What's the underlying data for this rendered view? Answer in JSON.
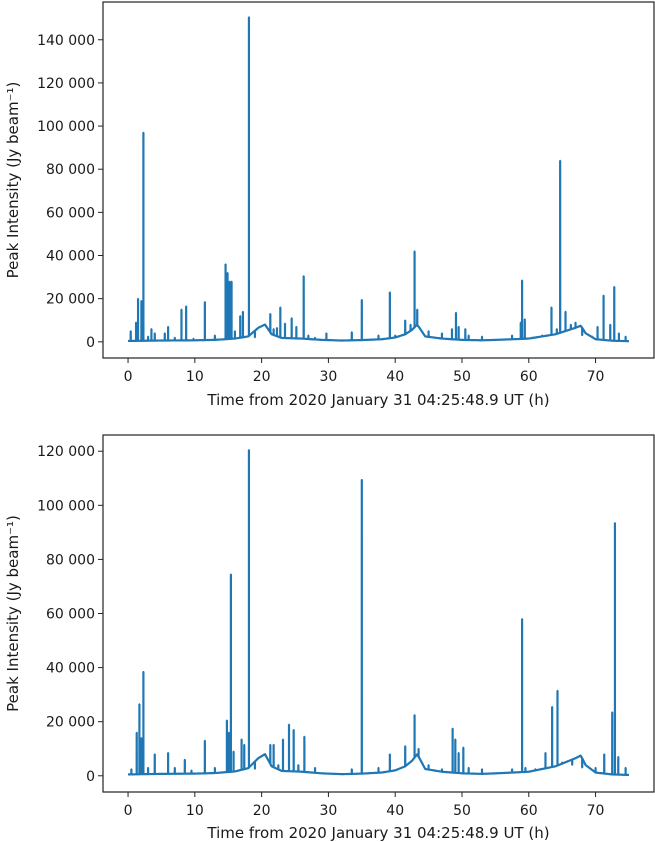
{
  "chart_data": [
    {
      "type": "line",
      "title": "",
      "xlabel": "Time from 2020 January 31 04:25:48.9 UT (h)",
      "ylabel": "Peak Intensity (Jy beam⁻¹)",
      "xlim": [
        -3.75,
        78.75
      ],
      "ylim": [
        -7500,
        157500
      ],
      "xticks": [
        0,
        10,
        20,
        30,
        40,
        50,
        60,
        70
      ],
      "yticks": [
        0,
        20000,
        40000,
        60000,
        80000,
        100000,
        120000,
        140000
      ],
      "ytick_labels": [
        "0",
        "20 000",
        "40 000",
        "60 000",
        "80 000",
        "100 000",
        "120 000",
        "140 000"
      ],
      "grid": false,
      "series": [
        {
          "color": "#1f77b4",
          "baseline": [
            [
              0,
              400
            ],
            [
              5,
              600
            ],
            [
              10,
              700
            ],
            [
              13,
              900
            ],
            [
              16,
              1500
            ],
            [
              18,
              2500
            ],
            [
              19.5,
              6500
            ],
            [
              20.5,
              8000
            ],
            [
              21.5,
              3500
            ],
            [
              23,
              1800
            ],
            [
              26,
              1500
            ],
            [
              29,
              900
            ],
            [
              32,
              600
            ],
            [
              35,
              800
            ],
            [
              38,
              1200
            ],
            [
              40,
              2000
            ],
            [
              41.5,
              3500
            ],
            [
              42.5,
              5500
            ],
            [
              43.3,
              8000
            ],
            [
              44.5,
              2500
            ],
            [
              47,
              1500
            ],
            [
              50,
              900
            ],
            [
              53,
              700
            ],
            [
              56,
              1000
            ],
            [
              60,
              1500
            ],
            [
              62,
              2500
            ],
            [
              64,
              3500
            ],
            [
              65.5,
              5000
            ],
            [
              67,
              6500
            ],
            [
              67.8,
              7500
            ],
            [
              68.5,
              4000
            ],
            [
              70,
              1200
            ],
            [
              72.5,
              500
            ],
            [
              75,
              300
            ]
          ],
          "spikes": [
            [
              0.4,
              5000
            ],
            [
              1.2,
              9000
            ],
            [
              1.5,
              20000
            ],
            [
              2,
              19000
            ],
            [
              2.3,
              97000
            ],
            [
              3,
              2500
            ],
            [
              3.5,
              6000
            ],
            [
              4,
              4000
            ],
            [
              5.5,
              4000
            ],
            [
              6,
              7000
            ],
            [
              7,
              2000
            ],
            [
              8,
              15000
            ],
            [
              8.7,
              16500
            ],
            [
              9.8,
              1500
            ],
            [
              11.5,
              18500
            ],
            [
              13,
              3000
            ],
            [
              14.6,
              36000
            ],
            [
              14.9,
              32000
            ],
            [
              15.2,
              28000
            ],
            [
              15.5,
              28000
            ],
            [
              16,
              5000
            ],
            [
              16.8,
              12000
            ],
            [
              17.2,
              14000
            ],
            [
              18.1,
              150500
            ],
            [
              19,
              2000
            ],
            [
              21.3,
              13000
            ],
            [
              21.8,
              6000
            ],
            [
              22.3,
              6500
            ],
            [
              22.8,
              16000
            ],
            [
              23.5,
              8500
            ],
            [
              24.5,
              11000
            ],
            [
              25.2,
              7000
            ],
            [
              26.3,
              30500
            ],
            [
              27,
              3000
            ],
            [
              28,
              2000
            ],
            [
              29.7,
              4000
            ],
            [
              33.5,
              4500
            ],
            [
              35,
              19500
            ],
            [
              37.5,
              3000
            ],
            [
              39.2,
              23000
            ],
            [
              40,
              3000
            ],
            [
              41.5,
              10000
            ],
            [
              42.3,
              8000
            ],
            [
              42.9,
              42000
            ],
            [
              43.3,
              15000
            ],
            [
              45,
              5000
            ],
            [
              47,
              4000
            ],
            [
              48.5,
              6000
            ],
            [
              49.1,
              13500
            ],
            [
              49.5,
              7000
            ],
            [
              50.5,
              6000
            ],
            [
              51,
              3000
            ],
            [
              53,
              2500
            ],
            [
              57.5,
              3000
            ],
            [
              58.8,
              9000
            ],
            [
              59,
              28500
            ],
            [
              59.4,
              10500
            ],
            [
              60.5,
              2000
            ],
            [
              62,
              3000
            ],
            [
              63.4,
              16000
            ],
            [
              64.2,
              6000
            ],
            [
              64.7,
              84000
            ],
            [
              65.5,
              14000
            ],
            [
              66.3,
              8000
            ],
            [
              67,
              9000
            ],
            [
              68,
              3000
            ],
            [
              69.5,
              2500
            ],
            [
              70.3,
              7000
            ],
            [
              71.2,
              21500
            ],
            [
              72.2,
              8000
            ],
            [
              72.8,
              25500
            ],
            [
              73.5,
              4000
            ],
            [
              74.5,
              2500
            ]
          ]
        }
      ]
    },
    {
      "type": "line",
      "title": "",
      "xlabel": "Time from 2020 January 31 04:25:48.9 UT (h)",
      "ylabel": "Peak Intensity (Jy beam⁻¹)",
      "xlim": [
        -3.75,
        78.75
      ],
      "ylim": [
        -6000,
        126000
      ],
      "xticks": [
        0,
        10,
        20,
        30,
        40,
        50,
        60,
        70
      ],
      "yticks": [
        0,
        20000,
        40000,
        60000,
        80000,
        100000,
        120000
      ],
      "ytick_labels": [
        "0",
        "20 000",
        "40 000",
        "60 000",
        "80 000",
        "100 000",
        "120 000"
      ],
      "grid": false,
      "series": [
        {
          "color": "#1f77b4",
          "baseline": [
            [
              0,
              500
            ],
            [
              5,
              700
            ],
            [
              10,
              800
            ],
            [
              13,
              1000
            ],
            [
              16,
              1600
            ],
            [
              18,
              2800
            ],
            [
              19.5,
              6500
            ],
            [
              20.5,
              8000
            ],
            [
              21.5,
              3500
            ],
            [
              23,
              1800
            ],
            [
              26,
              1500
            ],
            [
              29,
              900
            ],
            [
              32,
              600
            ],
            [
              35,
              800
            ],
            [
              38,
              1200
            ],
            [
              40,
              2000
            ],
            [
              41.5,
              3500
            ],
            [
              42.5,
              5500
            ],
            [
              43.3,
              8000
            ],
            [
              44.5,
              2500
            ],
            [
              47,
              1500
            ],
            [
              50,
              900
            ],
            [
              53,
              700
            ],
            [
              56,
              1000
            ],
            [
              60,
              1500
            ],
            [
              62,
              2500
            ],
            [
              64,
              3500
            ],
            [
              65.5,
              5000
            ],
            [
              67,
              6500
            ],
            [
              67.8,
              7500
            ],
            [
              68.5,
              4000
            ],
            [
              70,
              1200
            ],
            [
              72.5,
              500
            ],
            [
              75,
              300
            ]
          ],
          "spikes": [
            [
              0.5,
              2500
            ],
            [
              1.3,
              16000
            ],
            [
              1.7,
              26500
            ],
            [
              2,
              14000
            ],
            [
              2.3,
              38500
            ],
            [
              3,
              3000
            ],
            [
              4,
              8000
            ],
            [
              6,
              8500
            ],
            [
              7,
              3000
            ],
            [
              8.5,
              6000
            ],
            [
              9.5,
              2000
            ],
            [
              11.5,
              13000
            ],
            [
              13,
              3000
            ],
            [
              14.8,
              20500
            ],
            [
              15.1,
              16000
            ],
            [
              15.4,
              74500
            ],
            [
              15.8,
              9000
            ],
            [
              17,
              13500
            ],
            [
              17.4,
              11500
            ],
            [
              18.1,
              120500
            ],
            [
              19,
              2500
            ],
            [
              21.3,
              11500
            ],
            [
              21.8,
              11500
            ],
            [
              22.5,
              4000
            ],
            [
              23.2,
              13500
            ],
            [
              24.1,
              19000
            ],
            [
              24.8,
              17000
            ],
            [
              25.5,
              4000
            ],
            [
              26.4,
              14500
            ],
            [
              28,
              3000
            ],
            [
              33.5,
              2500
            ],
            [
              35,
              109500
            ],
            [
              37.5,
              3000
            ],
            [
              39.2,
              8000
            ],
            [
              41.5,
              11000
            ],
            [
              42.9,
              22500
            ],
            [
              43.5,
              10000
            ],
            [
              45,
              4000
            ],
            [
              47,
              2500
            ],
            [
              48.6,
              17500
            ],
            [
              49,
              13500
            ],
            [
              49.5,
              8500
            ],
            [
              50.2,
              10500
            ],
            [
              51,
              3000
            ],
            [
              53,
              2500
            ],
            [
              57.5,
              2500
            ],
            [
              59,
              58000
            ],
            [
              59.5,
              3000
            ],
            [
              61,
              2500
            ],
            [
              62.5,
              8500
            ],
            [
              63.5,
              25500
            ],
            [
              64.3,
              31500
            ],
            [
              65,
              5000
            ],
            [
              66.5,
              4000
            ],
            [
              68,
              3000
            ],
            [
              70,
              3000
            ],
            [
              71.3,
              8000
            ],
            [
              72.5,
              23500
            ],
            [
              72.9,
              93500
            ],
            [
              73.4,
              7000
            ],
            [
              74.5,
              3000
            ]
          ]
        }
      ]
    }
  ]
}
